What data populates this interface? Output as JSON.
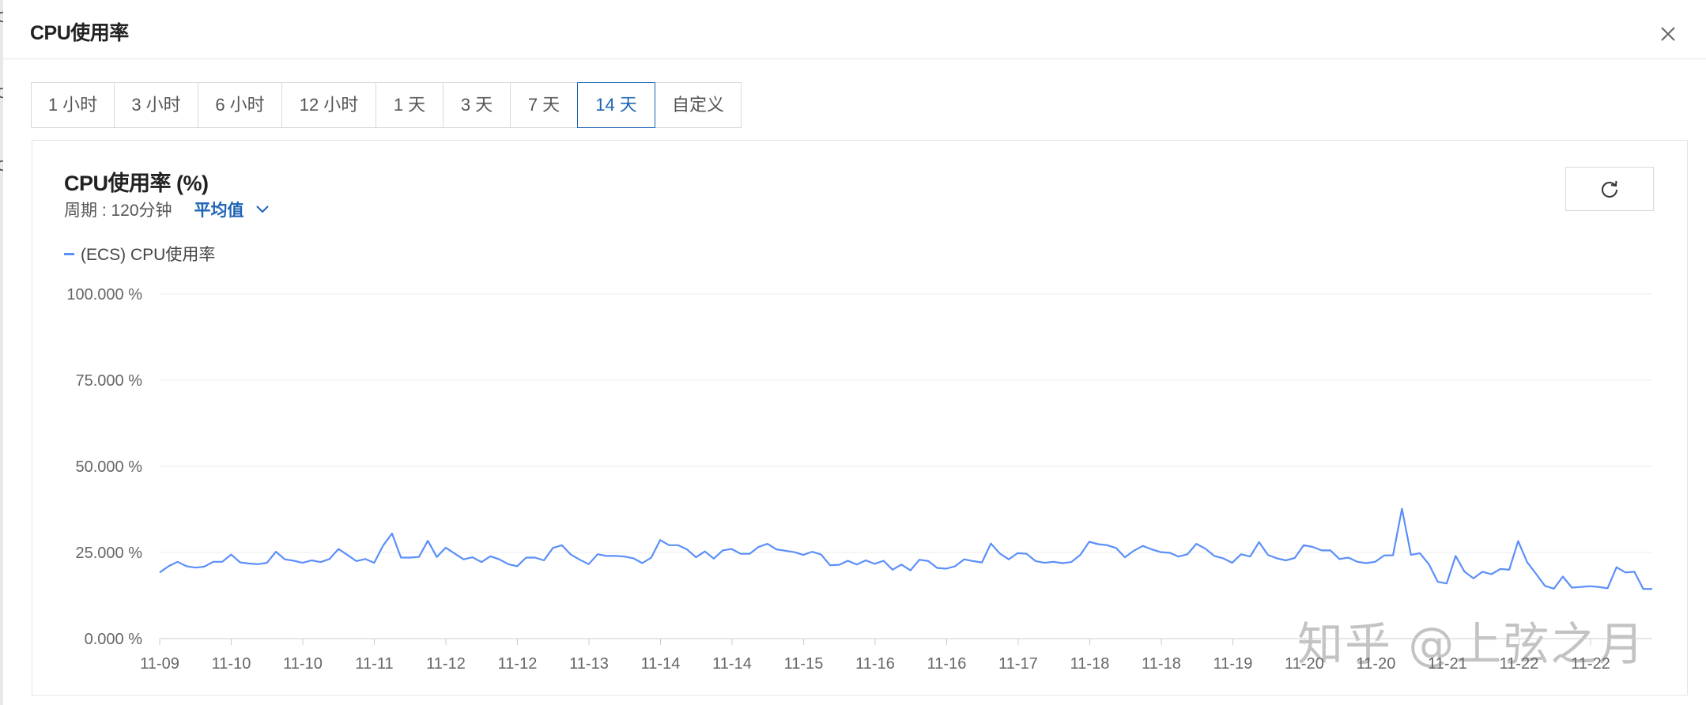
{
  "modal": {
    "title": "CPU使用率"
  },
  "range_tabs": [
    {
      "label": "1 小时",
      "active": false
    },
    {
      "label": "3 小时",
      "active": false
    },
    {
      "label": "6 小时",
      "active": false
    },
    {
      "label": "12 小时",
      "active": false
    },
    {
      "label": "1 天",
      "active": false
    },
    {
      "label": "3 天",
      "active": false
    },
    {
      "label": "7 天",
      "active": false
    },
    {
      "label": "14 天",
      "active": true
    },
    {
      "label": "自定义",
      "active": false
    }
  ],
  "card": {
    "title": "CPU使用率 (%)",
    "period_label": "周期 : 120分钟",
    "aggregation": "平均值"
  },
  "watermark": "知乎 @上弦之月",
  "colors": {
    "accent": "#1e64b4",
    "series": "#5b8ff9"
  },
  "chart_data": {
    "type": "line",
    "title": "CPU使用率 (%)",
    "ylim": [
      0,
      100
    ],
    "y_ticks": [
      "100.000 %",
      "75.000 %",
      "50.000 %",
      "25.000 %",
      "0.000 %"
    ],
    "y_tick_values": [
      100,
      75,
      50,
      25,
      0
    ],
    "x_tick_labels": [
      "11-09",
      "11-10",
      "11-10",
      "11-11",
      "11-12",
      "11-12",
      "11-13",
      "11-14",
      "11-14",
      "11-15",
      "11-16",
      "11-16",
      "11-17",
      "11-18",
      "11-18",
      "11-19",
      "11-20",
      "11-20",
      "11-21",
      "11-22",
      "11-22"
    ],
    "legend_position": "top-left",
    "grid": true,
    "series": [
      {
        "name": "(ECS) CPU使用率",
        "color": "#5b8ff9",
        "values": [
          19.2,
          21.0,
          22.3,
          21.0,
          20.6,
          20.9,
          22.3,
          22.3,
          24.4,
          22.1,
          21.8,
          21.6,
          22.0,
          25.2,
          23.0,
          22.6,
          22.0,
          22.7,
          22.2,
          23.1,
          26.0,
          24.3,
          22.5,
          23.1,
          22.0,
          27.0,
          30.5,
          23.5,
          23.5,
          23.7,
          28.4,
          23.7,
          26.4,
          24.7,
          23.0,
          23.6,
          22.2,
          23.9,
          23.0,
          21.6,
          21.0,
          23.5,
          23.5,
          22.7,
          26.3,
          27.1,
          24.4,
          22.9,
          21.6,
          24.5,
          24.0,
          24.0,
          23.8,
          23.3,
          21.9,
          23.5,
          28.6,
          27.1,
          27.1,
          25.9,
          23.6,
          25.3,
          23.2,
          25.6,
          26.0,
          24.6,
          24.6,
          26.6,
          27.5,
          25.9,
          25.5,
          25.1,
          24.3,
          25.2,
          24.4,
          21.3,
          21.4,
          22.6,
          21.5,
          22.7,
          21.7,
          22.6,
          20.0,
          21.5,
          19.8,
          22.9,
          22.5,
          20.5,
          20.3,
          21.0,
          23.0,
          22.5,
          22.1,
          27.6,
          24.7,
          23.0,
          24.8,
          24.6,
          22.5,
          22.0,
          22.3,
          21.9,
          22.2,
          24.3,
          28.1,
          27.4,
          27.1,
          26.3,
          23.6,
          25.5,
          26.9,
          25.9,
          25.1,
          24.9,
          23.8,
          24.5,
          27.5,
          26.1,
          24.0,
          23.3,
          22.0,
          24.5,
          23.8,
          28.0,
          24.3,
          23.3,
          22.7,
          23.4,
          27.1,
          26.6,
          25.6,
          25.6,
          23.1,
          23.5,
          22.3,
          21.9,
          22.3,
          24.1,
          24.2,
          37.7,
          24.3,
          24.8,
          21.6,
          16.5,
          16.0,
          24.0,
          19.4,
          17.5,
          19.4,
          18.7,
          20.2,
          20.0,
          28.3,
          22.2,
          18.8,
          15.3,
          14.5,
          18.0,
          14.8,
          15.0,
          15.2,
          15.0,
          14.6,
          20.7,
          19.2,
          19.4,
          14.4,
          14.4
        ]
      }
    ]
  }
}
